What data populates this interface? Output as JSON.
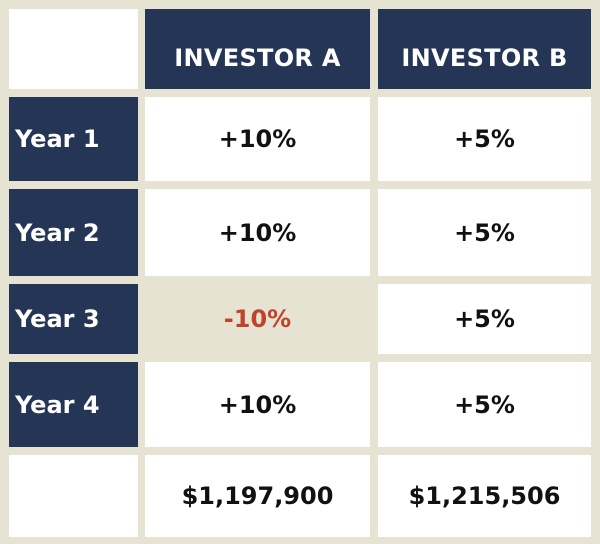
{
  "table": {
    "columns": [
      "INVESTOR A",
      "INVESTOR B"
    ],
    "rows": [
      {
        "label": "Year 1",
        "a": "+10%",
        "b": "+5%"
      },
      {
        "label": "Year 2",
        "a": "+10%",
        "b": "+5%"
      },
      {
        "label": "Year 3",
        "a": "-10%",
        "b": "+5%"
      },
      {
        "label": "Year 4",
        "a": "+10%",
        "b": "+5%"
      }
    ],
    "totals": {
      "a": "$1,197,900",
      "b": "$1,215,506"
    }
  },
  "colors": {
    "navy": "#243556",
    "cream": "#e7e3d2",
    "loss_text": "#c0432a"
  }
}
